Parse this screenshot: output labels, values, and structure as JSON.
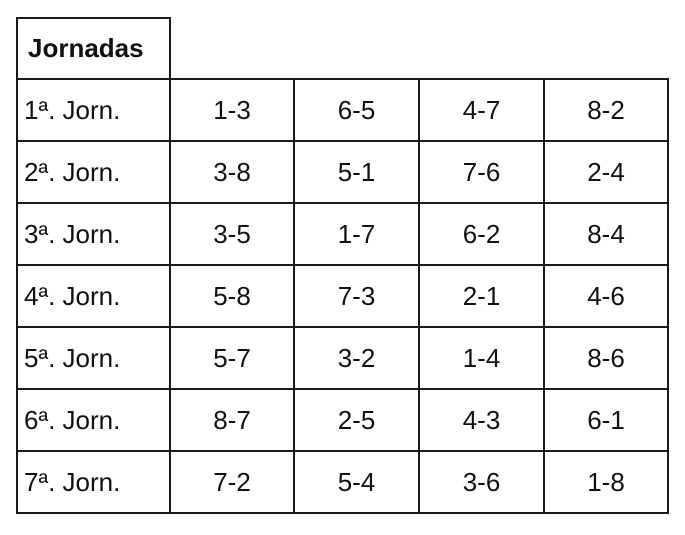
{
  "table": {
    "header": "Jornadas",
    "rows": [
      [
        "1ª. Jorn.",
        "1-3",
        "6-5",
        "4-7",
        "8-2"
      ],
      [
        "2ª. Jorn.",
        "3-8",
        "5-1",
        "7-6",
        "2-4"
      ],
      [
        "3ª. Jorn.",
        "3-5",
        "1-7",
        "6-2",
        "8-4"
      ],
      [
        "4ª. Jorn.",
        "5-8",
        "7-3",
        "2-1",
        "4-6"
      ],
      [
        "5ª. Jorn.",
        "5-7",
        "3-2",
        "1-4",
        "8-6"
      ],
      [
        "6ª. Jorn.",
        "8-7",
        "2-5",
        "4-3",
        "6-1"
      ],
      [
        "7ª. Jorn.",
        "7-2",
        "5-4",
        "3-6",
        "1-8"
      ]
    ]
  }
}
